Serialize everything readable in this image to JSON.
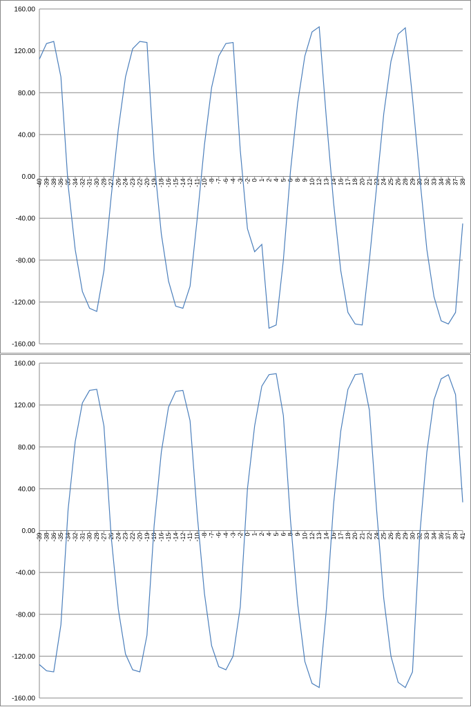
{
  "chart_data": [
    {
      "type": "line",
      "color": "#4a7ebb",
      "grid": true,
      "ylim": [
        -160,
        160
      ],
      "yticks": [
        {
          "value": 160,
          "label": "160.00"
        },
        {
          "value": 120,
          "label": "120.00"
        },
        {
          "value": 80,
          "label": "80.00"
        },
        {
          "value": 40,
          "label": "40.00"
        },
        {
          "value": 0,
          "label": "0.00"
        },
        {
          "value": -40,
          "label": "-40.00"
        },
        {
          "value": -80,
          "label": "-80.00"
        },
        {
          "value": -120,
          "label": "-120.00"
        },
        {
          "value": -160,
          "label": "-160.00"
        }
      ],
      "categories": [
        -40,
        -39,
        -38,
        -36,
        -35,
        -34,
        -32,
        -31,
        -30,
        -28,
        -27,
        -26,
        -24,
        -23,
        -22,
        -20,
        -19,
        -18,
        -16,
        -15,
        -14,
        -12,
        -11,
        -10,
        -8,
        -7,
        -6,
        -4,
        -3,
        -2,
        0,
        1,
        2,
        4,
        5,
        6,
        8,
        9,
        10,
        12,
        13,
        14,
        16,
        17,
        18,
        20,
        21,
        22,
        24,
        25,
        26,
        28,
        29,
        30,
        32,
        33,
        34,
        36,
        37,
        38
      ],
      "values": [
        112,
        127,
        129,
        95,
        -8,
        -70,
        -110,
        -126,
        -129,
        -90,
        -20,
        45,
        95,
        122,
        129,
        128,
        15,
        -55,
        -100,
        -124,
        -126,
        -105,
        -40,
        30,
        85,
        115,
        127,
        128,
        25,
        -50,
        -72,
        -65,
        -145,
        -142,
        -80,
        5,
        70,
        115,
        138,
        143,
        55,
        -25,
        -90,
        -130,
        -141,
        -142,
        -80,
        -10,
        60,
        110,
        136,
        142,
        75,
        0,
        -70,
        -115,
        -138,
        -141,
        -130,
        -45
      ]
    },
    {
      "type": "line",
      "color": "#4a7ebb",
      "grid": true,
      "ylim": [
        -160,
        160
      ],
      "yticks": [
        {
          "value": 160,
          "label": "160.00"
        },
        {
          "value": 120,
          "label": "120.00"
        },
        {
          "value": 80,
          "label": "80.00"
        },
        {
          "value": 40,
          "label": "40.00"
        },
        {
          "value": 0,
          "label": "0.00"
        },
        {
          "value": -40,
          "label": "-40.00"
        },
        {
          "value": -80,
          "label": "-80.00"
        },
        {
          "value": -120,
          "label": "-120.00"
        },
        {
          "value": -160,
          "label": "-160.00"
        }
      ],
      "categories": [
        -39,
        -38,
        -36,
        -35,
        -34,
        -32,
        -31,
        -30,
        -28,
        -27,
        -26,
        -24,
        -23,
        -22,
        -20,
        -19,
        -18,
        -16,
        -15,
        -14,
        -12,
        -11,
        -10,
        -8,
        -7,
        -6,
        -4,
        -3,
        -2,
        0,
        1,
        2,
        4,
        5,
        6,
        8,
        9,
        10,
        12,
        13,
        14,
        16,
        17,
        18,
        20,
        21,
        22,
        24,
        25,
        26,
        28,
        29,
        30,
        32,
        33,
        34,
        36,
        37,
        39,
        41
      ],
      "values": [
        -128,
        -134,
        -135,
        -90,
        20,
        85,
        122,
        134,
        135,
        100,
        -5,
        -75,
        -118,
        -133,
        -135,
        -100,
        5,
        75,
        118,
        133,
        134,
        105,
        15,
        -60,
        -110,
        -130,
        -133,
        -120,
        -73,
        40,
        100,
        138,
        149,
        150,
        110,
        10,
        -70,
        -125,
        -146,
        -150,
        -75,
        25,
        95,
        135,
        149,
        150,
        115,
        20,
        -65,
        -120,
        -145,
        -150,
        -135,
        -5,
        75,
        125,
        145,
        149,
        130,
        27
      ]
    }
  ]
}
